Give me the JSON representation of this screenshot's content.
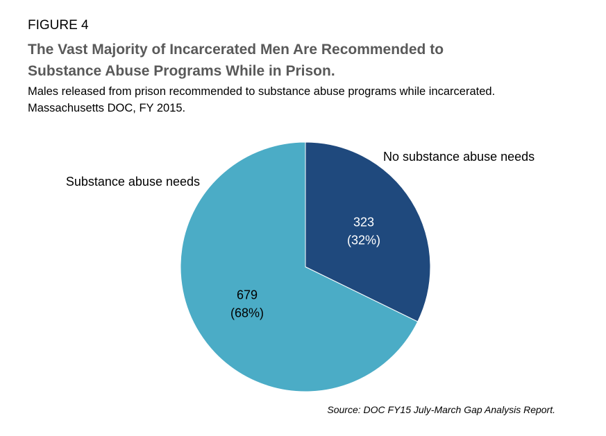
{
  "figure_label": "FIGURE 4",
  "title_line1": "The Vast Majority of Incarcerated Men Are Recommended to",
  "title_line2": "Substance Abuse Programs While in Prison.",
  "subtitle": "Males released from prison recommended to substance abuse programs while incarcerated. Massachusetts DOC, FY 2015.",
  "source": "Source: DOC FY15 July-March Gap Analysis Report.",
  "chart_data": {
    "type": "pie",
    "slices": [
      {
        "name": "No substance abuse needs",
        "value": 323,
        "percent_label": "(32%)",
        "color": "#1f497d",
        "label_color": "#ffffff"
      },
      {
        "name": "Substance abuse needs",
        "value": 679,
        "percent_label": "(68%)",
        "color": "#4bacc6",
        "label_color": "#000000"
      }
    ],
    "start": "12 o'clock, clockwise"
  }
}
